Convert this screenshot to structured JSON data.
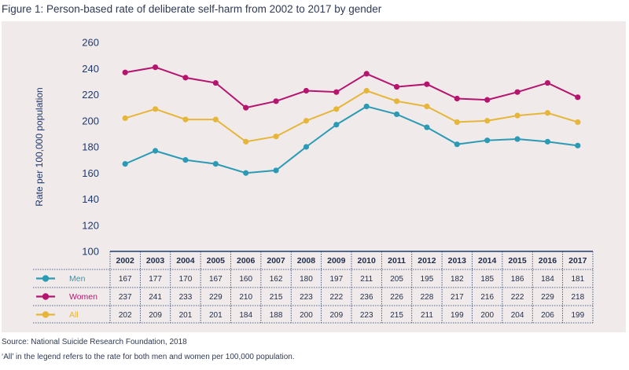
{
  "title": "Figure 1: Person-based rate of deliberate self-harm from 2002 to 2017 by gender",
  "source": "Source: National Suicide Research Foundation, 2018",
  "note": "‘All’ in the legend refers to the rate for both men and women per 100,000 population.",
  "colors": {
    "men": "#2b9bb5",
    "women": "#b5156f",
    "all": "#e6b63a",
    "axis": "#1f3a6e",
    "panel": "#f1eaea"
  },
  "chart_data": {
    "type": "line",
    "title": "Figure 1: Person-based rate of deliberate self-harm from 2002 to 2017 by gender",
    "xlabel": "",
    "ylabel": "Rate per 100,000 population",
    "ylim": [
      100,
      260
    ],
    "yticks": [
      100,
      120,
      140,
      160,
      180,
      200,
      220,
      240,
      260
    ],
    "grid": false,
    "legend": "table-left",
    "categories": [
      "2002",
      "2003",
      "2004",
      "2005",
      "2006",
      "2007",
      "2008",
      "2009",
      "2010",
      "2011",
      "2012",
      "2013",
      "2014",
      "2015",
      "2016",
      "2017"
    ],
    "series": [
      {
        "name": "Men",
        "color": "#2b9bb5",
        "values": [
          167,
          177,
          170,
          167,
          160,
          162,
          180,
          197,
          211,
          205,
          195,
          182,
          185,
          186,
          184,
          181
        ]
      },
      {
        "name": "Women",
        "color": "#b5156f",
        "values": [
          237,
          241,
          233,
          229,
          210,
          215,
          223,
          222,
          236,
          226,
          228,
          217,
          216,
          222,
          229,
          218
        ]
      },
      {
        "name": "All",
        "color": "#e6b63a",
        "values": [
          202,
          209,
          201,
          201,
          184,
          188,
          200,
          209,
          223,
          215,
          211,
          199,
          200,
          204,
          206,
          199
        ]
      }
    ]
  }
}
